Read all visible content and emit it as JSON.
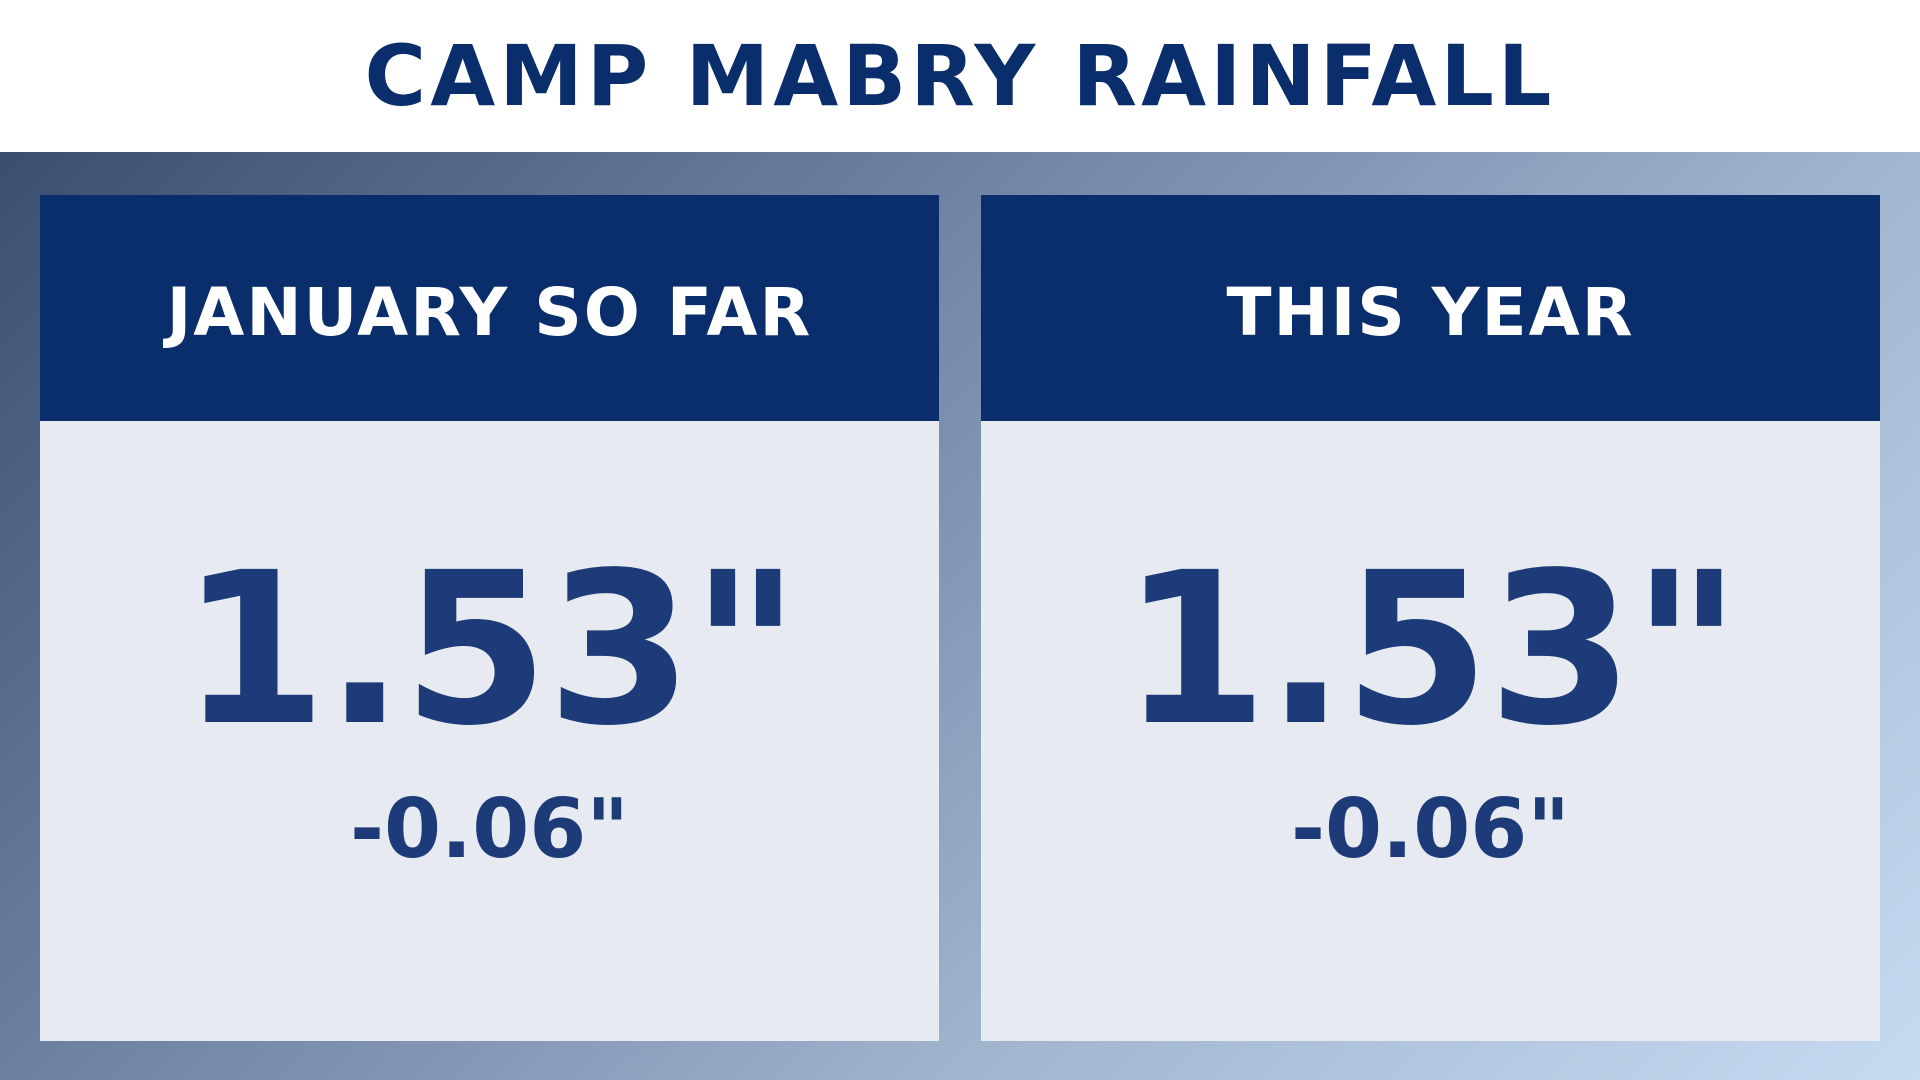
{
  "title": "CAMP MABRY RAINFALL",
  "panels": [
    {
      "header": "JANUARY SO FAR",
      "value": "1.53\"",
      "departure": "-0.06\""
    },
    {
      "header": "THIS YEAR",
      "value": "1.53\"",
      "departure": "-0.06\""
    }
  ],
  "colors": {
    "header_background": "#0a2d6b",
    "value_text": "#1c3b78",
    "panel_background": "#e7eaf0",
    "title_text": "#0a2d6b"
  }
}
